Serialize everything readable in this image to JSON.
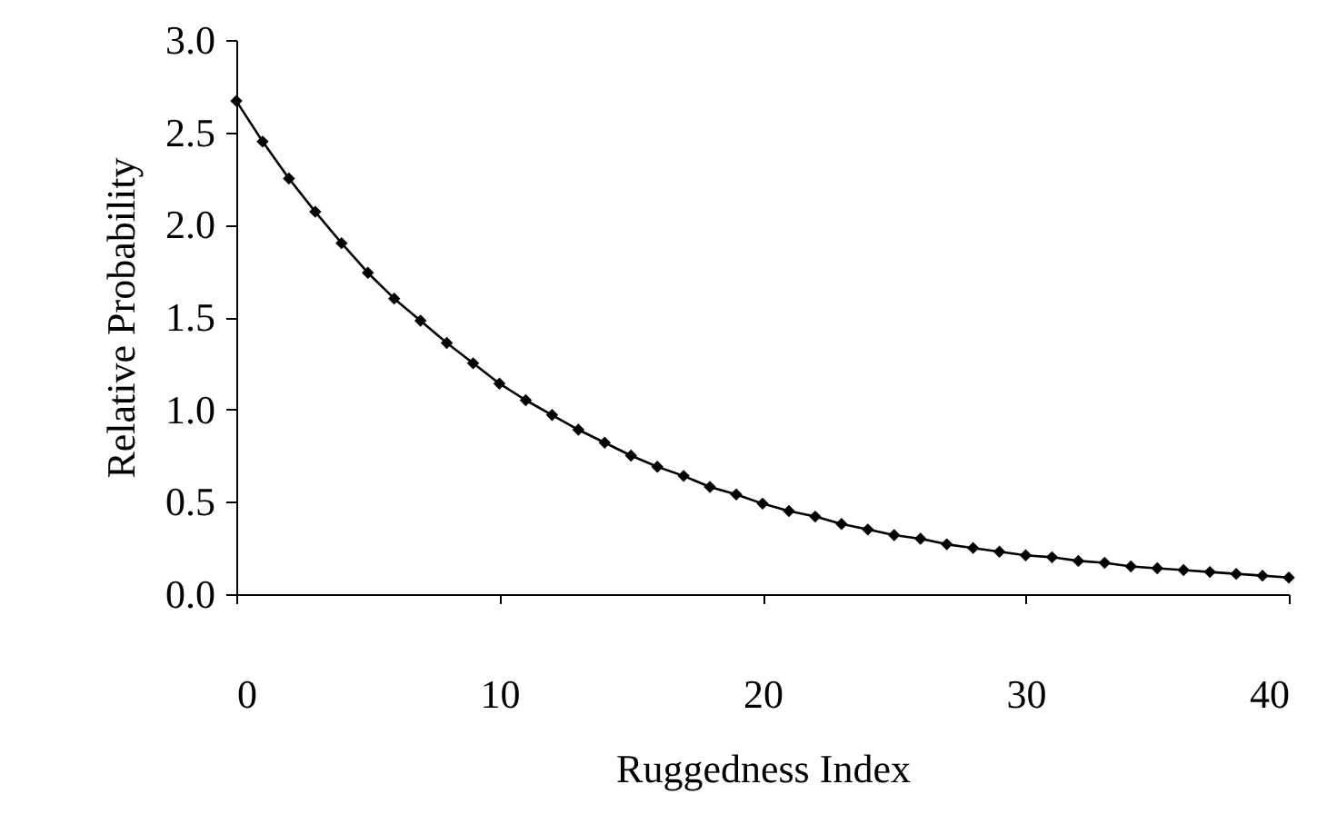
{
  "chart_data": {
    "type": "line",
    "xlabel": "Ruggedness Index",
    "ylabel": "Relative Probability",
    "x": [
      0,
      1,
      2,
      3,
      4,
      5,
      6,
      7,
      8,
      9,
      10,
      11,
      12,
      13,
      14,
      15,
      16,
      17,
      18,
      19,
      20,
      21,
      22,
      23,
      24,
      25,
      26,
      27,
      28,
      29,
      30,
      31,
      32,
      33,
      34,
      35,
      36,
      37,
      38,
      39,
      40
    ],
    "series": [
      {
        "color": "#000000",
        "values": [
          2.67,
          2.45,
          2.25,
          2.07,
          1.9,
          1.74,
          1.6,
          1.48,
          1.36,
          1.25,
          1.14,
          1.05,
          0.97,
          0.89,
          0.82,
          0.75,
          0.69,
          0.64,
          0.58,
          0.54,
          0.49,
          0.45,
          0.42,
          0.38,
          0.35,
          0.32,
          0.3,
          0.27,
          0.25,
          0.23,
          0.21,
          0.2,
          0.18,
          0.17,
          0.15,
          0.14,
          0.13,
          0.12,
          0.11,
          0.1,
          0.09
        ]
      }
    ],
    "xlim": [
      0,
      40
    ],
    "xticks": [
      0,
      10,
      20,
      30,
      40
    ],
    "ylim": [
      0,
      3.0
    ],
    "yticks": [
      {
        "value": 0,
        "label": "0.0"
      },
      {
        "value": 0.5,
        "label": "0.5"
      },
      {
        "value": 1,
        "label": "1.0"
      },
      {
        "value": 1.5,
        "label": "1.5"
      },
      {
        "value": 2,
        "label": "2.0"
      },
      {
        "value": 2.5,
        "label": "2.5"
      },
      {
        "value": 3,
        "label": "3.0"
      }
    ],
    "grid": false,
    "legend": false,
    "marker": "diamond",
    "line_style": "solid"
  }
}
